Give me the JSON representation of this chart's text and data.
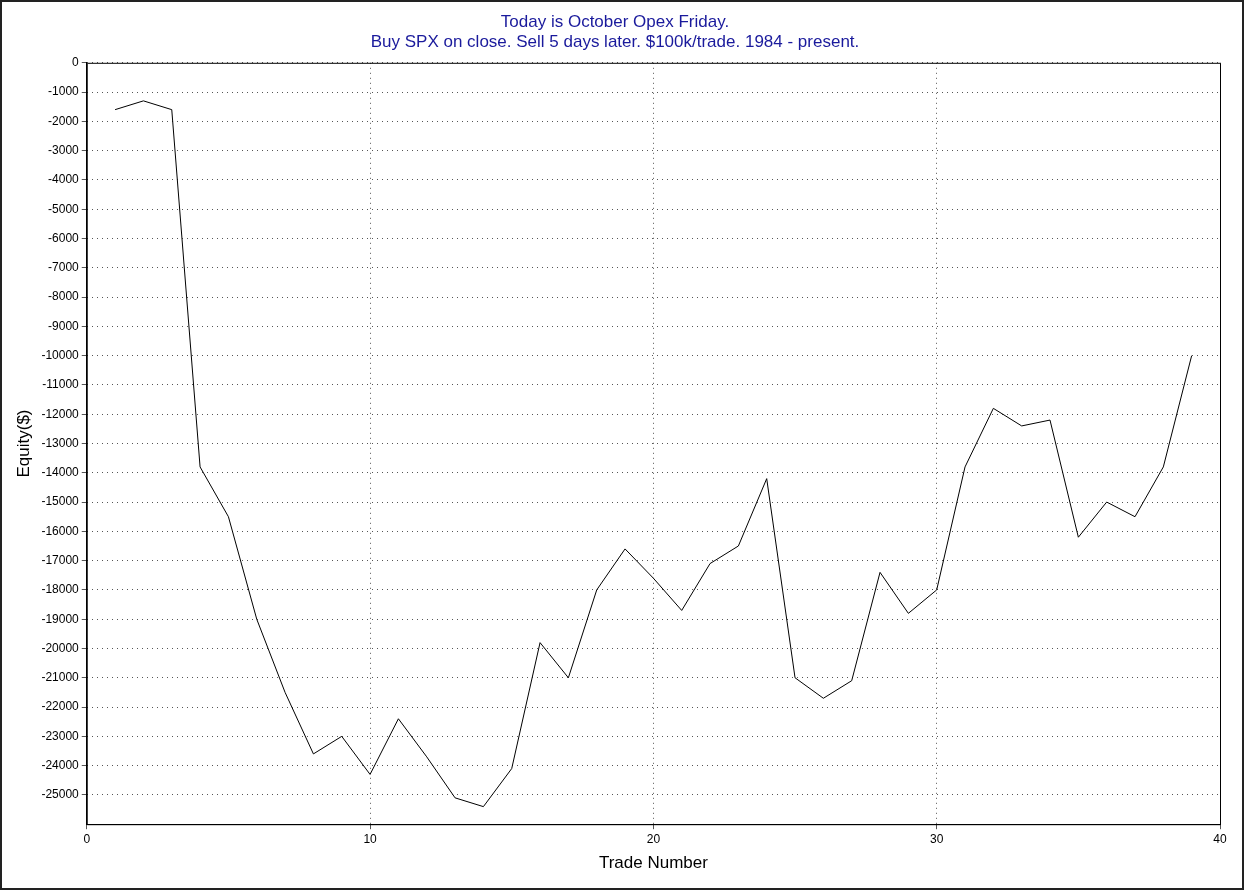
{
  "chart_data": {
    "type": "line",
    "title": "Today is October Opex Friday.",
    "subtitle": "Buy SPX on close. Sell 5 days later. $100k/trade. 1984 - present.",
    "xlabel": "Trade Number",
    "ylabel": "Equity($)",
    "x": [
      1,
      2,
      3,
      4,
      5,
      6,
      7,
      8,
      9,
      10,
      11,
      12,
      13,
      14,
      15,
      16,
      17,
      18,
      19,
      20,
      21,
      22,
      23,
      24,
      25,
      26,
      27,
      28,
      29,
      30,
      31,
      32,
      33,
      34,
      35,
      36,
      37,
      38,
      39
    ],
    "series": [
      {
        "color": "#000000",
        "values": [
          -1600,
          -1300,
          -1600,
          -13800,
          -15500,
          -19000,
          -21500,
          -23600,
          -23000,
          -24300,
          -22400,
          -23700,
          -25100,
          -25400,
          -24100,
          -19800,
          -21000,
          -18000,
          -16600,
          -17600,
          -18700,
          -17100,
          -16500,
          -14200,
          -21000,
          -21700,
          -21100,
          -17400,
          -18800,
          -18000,
          -13800,
          -11800,
          -12400,
          -12200,
          -16200,
          -15000,
          -15500,
          -13800,
          -10000
        ]
      }
    ],
    "xlim": [
      0,
      40
    ],
    "xticks": [
      0,
      10,
      20,
      30,
      40
    ],
    "ylim": [
      -26000,
      0
    ],
    "yticks": [
      0,
      -1000,
      -2000,
      -3000,
      -4000,
      -5000,
      -6000,
      -7000,
      -8000,
      -9000,
      -10000,
      -11000,
      -12000,
      -13000,
      -14000,
      -15000,
      -16000,
      -17000,
      -18000,
      -19000,
      -20000,
      -21000,
      -22000,
      -23000,
      -24000,
      -25000
    ],
    "grid": true,
    "legend": false,
    "marker": "none",
    "line_style": "solid"
  }
}
